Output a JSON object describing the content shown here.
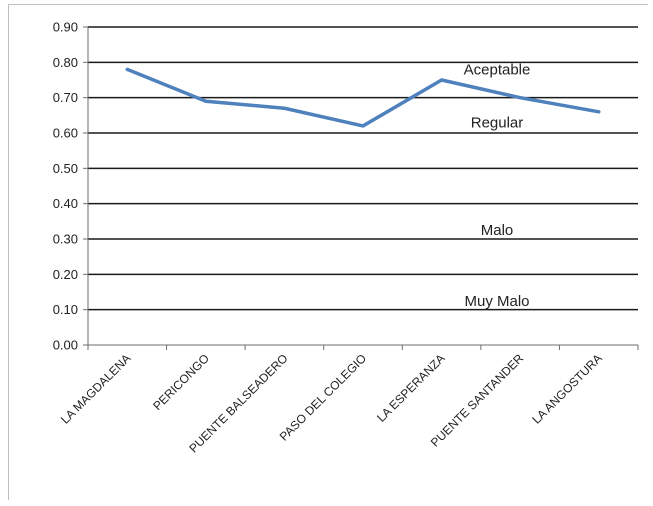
{
  "chart_data": {
    "type": "line",
    "categories": [
      "LA MAGDALENA",
      "PERICONGO",
      "PUENTE BALSEADERO",
      "PASO DEL COLEGIO",
      "LA ESPERANZA",
      "PUENTE SANTANDER",
      "LA ANGOSTURA"
    ],
    "series": [
      {
        "values": [
          0.78,
          0.69,
          0.67,
          0.62,
          0.75,
          0.7,
          0.66
        ],
        "color": "#4f81bd"
      }
    ],
    "ylim": [
      0,
      0.9
    ],
    "yticks": [
      "0.00",
      "0.10",
      "0.20",
      "0.30",
      "0.40",
      "0.50",
      "0.60",
      "0.70",
      "0.80",
      "0.90"
    ],
    "grid": true,
    "annotations": [
      {
        "text": "Aceptable",
        "y": 0.78
      },
      {
        "text": "Regular",
        "y": 0.63
      },
      {
        "text": "Malo",
        "y": 0.325
      },
      {
        "text": "Muy Malo",
        "y": 0.125
      }
    ]
  }
}
